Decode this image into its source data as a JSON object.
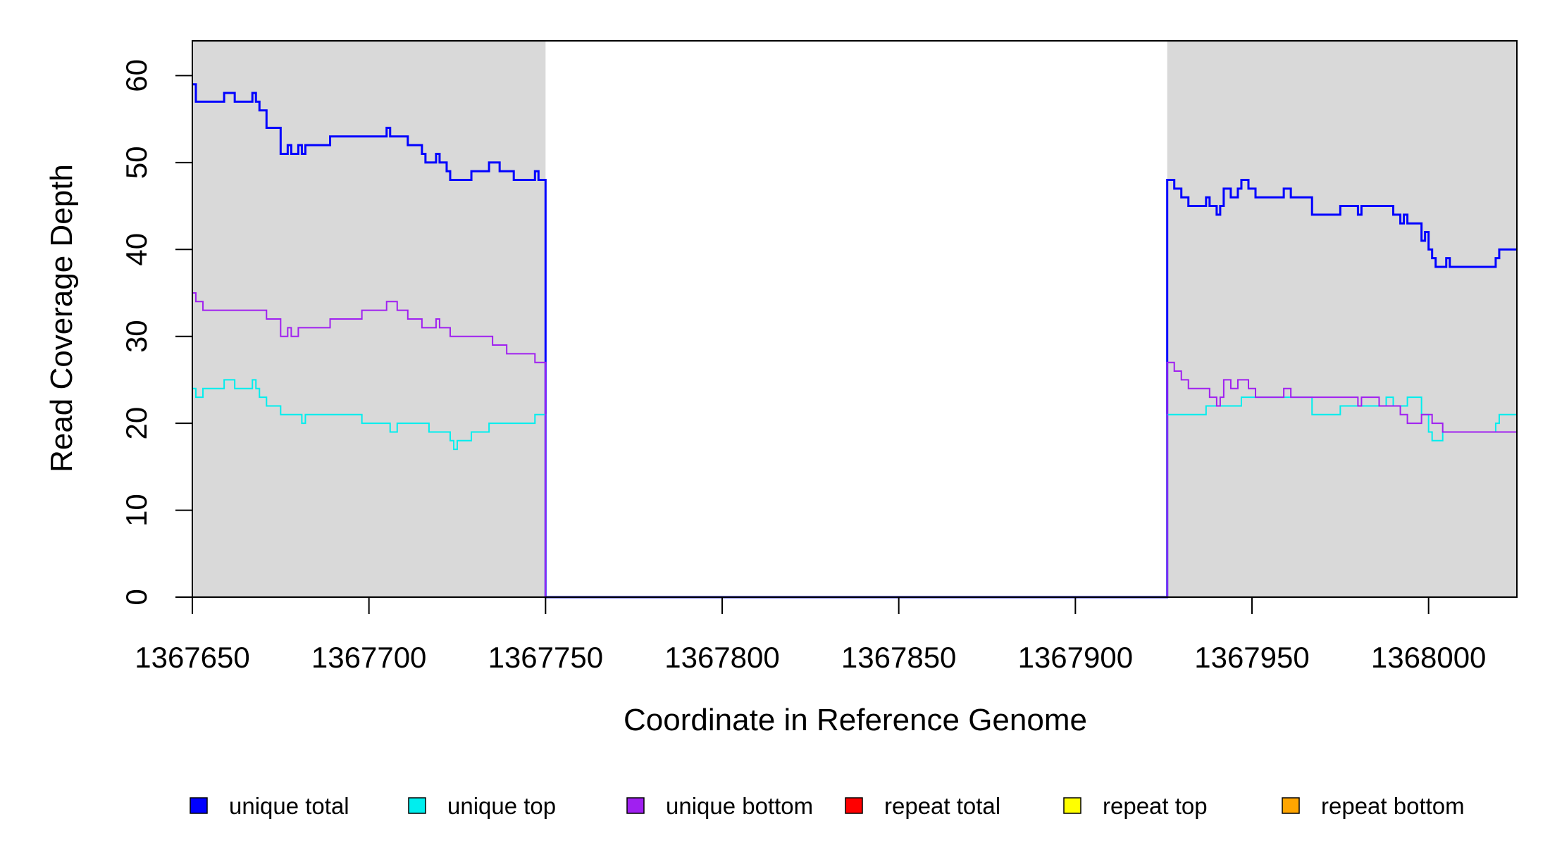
{
  "chart_data": {
    "type": "line",
    "xlabel": "Coordinate in Reference Genome",
    "ylabel": "Read Coverage Depth",
    "xlim": [
      1367650,
      1368025
    ],
    "ylim": [
      0,
      64
    ],
    "x_ticks": [
      1367650,
      1367700,
      1367750,
      1367800,
      1367850,
      1367900,
      1367950,
      1368000
    ],
    "x_tick_labels": [
      "1367650",
      "1367700",
      "1367750",
      "1367800",
      "1367850",
      "1367900",
      "1367950",
      "1368000"
    ],
    "y_ticks": [
      0,
      10,
      20,
      30,
      40,
      50,
      60
    ],
    "y_tick_labels": [
      "0",
      "10",
      "20",
      "30",
      "40",
      "50",
      "60"
    ],
    "shaded_regions": [
      [
        1367650,
        1367750
      ],
      [
        1367926,
        1368025
      ]
    ],
    "shade_color": "#d9d9d9",
    "grid": false,
    "legend_position": "bottom",
    "step": true,
    "series": [
      {
        "name": "unique total",
        "color": "#0000ff",
        "points": [
          [
            1367650,
            59
          ],
          [
            1367651,
            57
          ],
          [
            1367659,
            58
          ],
          [
            1367662,
            57
          ],
          [
            1367667,
            58
          ],
          [
            1367668,
            57
          ],
          [
            1367669,
            56
          ],
          [
            1367671,
            54
          ],
          [
            1367675,
            51
          ],
          [
            1367677,
            52
          ],
          [
            1367678,
            51
          ],
          [
            1367680,
            52
          ],
          [
            1367681,
            51
          ],
          [
            1367682,
            52
          ],
          [
            1367689,
            53
          ],
          [
            1367705,
            54
          ],
          [
            1367706,
            53
          ],
          [
            1367711,
            52
          ],
          [
            1367715,
            51
          ],
          [
            1367716,
            50
          ],
          [
            1367719,
            51
          ],
          [
            1367720,
            50
          ],
          [
            1367722,
            49
          ],
          [
            1367723,
            48
          ],
          [
            1367729,
            49
          ],
          [
            1367734,
            50
          ],
          [
            1367737,
            49
          ],
          [
            1367741,
            48
          ],
          [
            1367747,
            49
          ],
          [
            1367748,
            48
          ],
          [
            1367750,
            0
          ],
          [
            1367926,
            48
          ],
          [
            1367928,
            47
          ],
          [
            1367930,
            46
          ],
          [
            1367932,
            45
          ],
          [
            1367937,
            46
          ],
          [
            1367938,
            45
          ],
          [
            1367940,
            44
          ],
          [
            1367941,
            45
          ],
          [
            1367942,
            47
          ],
          [
            1367944,
            46
          ],
          [
            1367946,
            47
          ],
          [
            1367947,
            48
          ],
          [
            1367949,
            47
          ],
          [
            1367951,
            46
          ],
          [
            1367959,
            47
          ],
          [
            1367961,
            46
          ],
          [
            1367967,
            44
          ],
          [
            1367975,
            45
          ],
          [
            1367980,
            44
          ],
          [
            1367981,
            45
          ],
          [
            1367990,
            44
          ],
          [
            1367992,
            43
          ],
          [
            1367993,
            44
          ],
          [
            1367994,
            43
          ],
          [
            1367998,
            41
          ],
          [
            1367999,
            42
          ],
          [
            1368000,
            40
          ],
          [
            1368001,
            39
          ],
          [
            1368002,
            38
          ],
          [
            1368005,
            39
          ],
          [
            1368006,
            38
          ],
          [
            1368019,
            39
          ],
          [
            1368020,
            40
          ],
          [
            1368025,
            40
          ]
        ]
      },
      {
        "name": "unique top",
        "color": "#00eeee",
        "points": [
          [
            1367650,
            24
          ],
          [
            1367651,
            23
          ],
          [
            1367653,
            24
          ],
          [
            1367659,
            25
          ],
          [
            1367662,
            24
          ],
          [
            1367667,
            25
          ],
          [
            1367668,
            24
          ],
          [
            1367669,
            23
          ],
          [
            1367671,
            22
          ],
          [
            1367675,
            21
          ],
          [
            1367681,
            20
          ],
          [
            1367682,
            21
          ],
          [
            1367698,
            20
          ],
          [
            1367706,
            19
          ],
          [
            1367708,
            20
          ],
          [
            1367717,
            19
          ],
          [
            1367723,
            18
          ],
          [
            1367724,
            17
          ],
          [
            1367725,
            18
          ],
          [
            1367729,
            19
          ],
          [
            1367734,
            20
          ],
          [
            1367747,
            21
          ],
          [
            1367750,
            0
          ],
          [
            1367926,
            21
          ],
          [
            1367937,
            22
          ],
          [
            1367947,
            23
          ],
          [
            1367951,
            23
          ],
          [
            1367967,
            21
          ],
          [
            1367975,
            22
          ],
          [
            1367988,
            23
          ],
          [
            1367990,
            22
          ],
          [
            1367994,
            23
          ],
          [
            1367998,
            21
          ],
          [
            1368000,
            19
          ],
          [
            1368001,
            18
          ],
          [
            1368004,
            19
          ],
          [
            1368019,
            20
          ],
          [
            1368020,
            21
          ],
          [
            1368025,
            21
          ]
        ]
      },
      {
        "name": "unique bottom",
        "color": "#a020f0",
        "points": [
          [
            1367650,
            35
          ],
          [
            1367651,
            34
          ],
          [
            1367653,
            33
          ],
          [
            1367671,
            32
          ],
          [
            1367675,
            30
          ],
          [
            1367677,
            31
          ],
          [
            1367678,
            30
          ],
          [
            1367680,
            31
          ],
          [
            1367689,
            32
          ],
          [
            1367698,
            33
          ],
          [
            1367705,
            34
          ],
          [
            1367708,
            33
          ],
          [
            1367711,
            32
          ],
          [
            1367715,
            31
          ],
          [
            1367719,
            32
          ],
          [
            1367720,
            31
          ],
          [
            1367723,
            30
          ],
          [
            1367735,
            29
          ],
          [
            1367739,
            28
          ],
          [
            1367747,
            27
          ],
          [
            1367750,
            0
          ],
          [
            1367926,
            27
          ],
          [
            1367928,
            26
          ],
          [
            1367930,
            25
          ],
          [
            1367932,
            24
          ],
          [
            1367938,
            23
          ],
          [
            1367940,
            22
          ],
          [
            1367941,
            23
          ],
          [
            1367942,
            25
          ],
          [
            1367944,
            24
          ],
          [
            1367946,
            25
          ],
          [
            1367949,
            24
          ],
          [
            1367951,
            23
          ],
          [
            1367959,
            24
          ],
          [
            1367961,
            23
          ],
          [
            1367980,
            22
          ],
          [
            1367981,
            23
          ],
          [
            1367986,
            22
          ],
          [
            1367992,
            21
          ],
          [
            1367994,
            20
          ],
          [
            1367998,
            21
          ],
          [
            1368001,
            20
          ],
          [
            1368004,
            19
          ],
          [
            1368025,
            19
          ]
        ]
      },
      {
        "name": "repeat total",
        "color": "#ff0000",
        "points": [
          [
            1367650,
            0
          ],
          [
            1368025,
            0
          ]
        ]
      },
      {
        "name": "repeat top",
        "color": "#ffff00",
        "points": [
          [
            1367650,
            0
          ],
          [
            1368025,
            0
          ]
        ]
      },
      {
        "name": "repeat bottom",
        "color": "#ffa500",
        "points": [
          [
            1367650,
            0
          ],
          [
            1368025,
            0
          ]
        ]
      }
    ]
  }
}
